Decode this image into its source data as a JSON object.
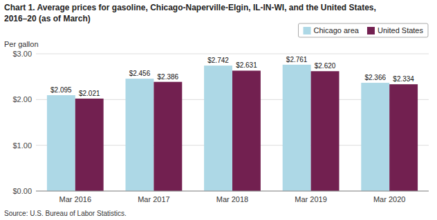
{
  "chart_data": {
    "type": "bar",
    "title": "Chart 1. Average prices for gasoline, Chicago-Naperville-Elgin, IL-IN-WI, and the United States,",
    "subtitle": "2016–20  (as of March)",
    "ylabel": "Per gallon",
    "source": "Source: U.S. Bureau of Labor Statistics.",
    "categories": [
      "Mar 2016",
      "Mar 2017",
      "Mar 2018",
      "Mar 2019",
      "Mar 2020"
    ],
    "series": [
      {
        "name": "Chicago area",
        "color": "#ADD8E6",
        "values": [
          2.095,
          2.456,
          2.742,
          2.761,
          2.366
        ],
        "value_labels": [
          "$2.095",
          "$2.456",
          "$2.742",
          "$2.761",
          "$2.366"
        ]
      },
      {
        "name": "United States",
        "color": "#722050",
        "values": [
          2.021,
          2.386,
          2.631,
          2.62,
          2.334
        ],
        "value_labels": [
          "$2.021",
          "$2.386",
          "$2.631",
          "$2.620",
          "$2.334"
        ]
      }
    ],
    "ylim": [
      0.0,
      3.0
    ],
    "yticks": [
      {
        "value": 0.0,
        "label": "$0.00"
      },
      {
        "value": 1.0,
        "label": "$1.00"
      },
      {
        "value": 2.0,
        "label": "$2.00"
      },
      {
        "value": 3.0,
        "label": "$3.00"
      }
    ],
    "grid": true,
    "legend": "upper right",
    "data_labels": true
  }
}
